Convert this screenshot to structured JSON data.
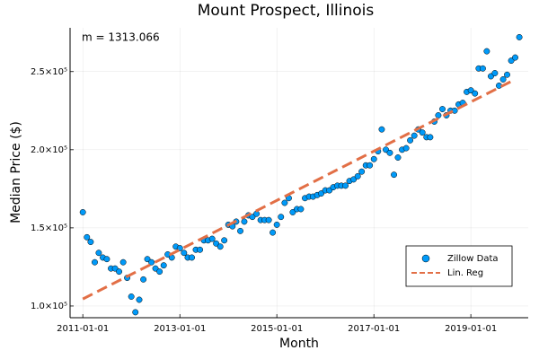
{
  "chart_data": {
    "type": "scatter",
    "title": "Mount Prospect, Illinois",
    "x_label": "Month",
    "y_label": "Median Price ($)",
    "annotation": "m = 1313.066",
    "xlim": [
      "2010-09-27",
      "2020-03-08"
    ],
    "xticks": [
      "2011-01-01",
      "2013-01-01",
      "2015-01-01",
      "2017-01-01",
      "2019-01-01"
    ],
    "ylim": [
      92500,
      278000
    ],
    "yticks": [
      {
        "value": 100000,
        "label": "1.0×10⁵"
      },
      {
        "value": 150000,
        "label": "1.5×10⁵"
      },
      {
        "value": 200000,
        "label": "2.0×10⁵"
      },
      {
        "value": 250000,
        "label": "2.5×10⁵"
      }
    ],
    "grid": true,
    "legend": "lower right",
    "series": [
      {
        "name": "Zillow Data",
        "color": "#009af9",
        "kind": "scatter",
        "x": [
          "2011-01-01",
          "2011-02-01",
          "2011-03-01",
          "2011-04-01",
          "2011-05-01",
          "2011-06-01",
          "2011-07-01",
          "2011-08-01",
          "2011-09-01",
          "2011-10-01",
          "2011-11-01",
          "2011-12-01",
          "2012-01-01",
          "2012-02-01",
          "2012-03-01",
          "2012-04-01",
          "2012-05-01",
          "2012-06-01",
          "2012-07-01",
          "2012-08-01",
          "2012-09-01",
          "2012-10-01",
          "2012-11-01",
          "2012-12-01",
          "2013-01-01",
          "2013-02-01",
          "2013-03-01",
          "2013-04-01",
          "2013-05-01",
          "2013-06-01",
          "2013-07-01",
          "2013-08-01",
          "2013-09-01",
          "2013-10-01",
          "2013-11-01",
          "2013-12-01",
          "2014-01-01",
          "2014-02-01",
          "2014-03-01",
          "2014-04-01",
          "2014-05-01",
          "2014-06-01",
          "2014-07-01",
          "2014-08-01",
          "2014-09-01",
          "2014-10-01",
          "2014-11-01",
          "2014-12-01",
          "2015-01-01",
          "2015-02-01",
          "2015-03-01",
          "2015-04-01",
          "2015-05-01",
          "2015-06-01",
          "2015-07-01",
          "2015-08-01",
          "2015-09-01",
          "2015-10-01",
          "2015-11-01",
          "2015-12-01",
          "2016-01-01",
          "2016-02-01",
          "2016-03-01",
          "2016-04-01",
          "2016-05-01",
          "2016-06-01",
          "2016-07-01",
          "2016-08-01",
          "2016-09-01",
          "2016-10-01",
          "2016-11-01",
          "2016-12-01",
          "2017-01-01",
          "2017-02-01",
          "2017-03-01",
          "2017-04-01",
          "2017-05-01",
          "2017-06-01",
          "2017-07-01",
          "2017-08-01",
          "2017-09-01",
          "2017-10-01",
          "2017-11-01",
          "2017-12-01",
          "2018-01-01",
          "2018-02-01",
          "2018-03-01",
          "2018-04-01",
          "2018-05-01",
          "2018-06-01",
          "2018-07-01",
          "2018-08-01",
          "2018-09-01",
          "2018-10-01",
          "2018-11-01",
          "2018-12-01",
          "2019-01-01",
          "2019-02-01",
          "2019-03-01",
          "2019-04-01",
          "2019-05-01",
          "2019-06-01",
          "2019-07-01",
          "2019-08-01",
          "2019-09-01",
          "2019-10-01",
          "2019-11-01",
          "2019-12-01",
          "2020-01-01"
        ],
        "values": [
          160000,
          144000,
          141000,
          128000,
          134000,
          131000,
          130000,
          124000,
          124000,
          122000,
          128000,
          118000,
          106000,
          96000,
          104000,
          117000,
          130000,
          128000,
          124000,
          122000,
          126000,
          133000,
          131000,
          138000,
          137000,
          134000,
          131000,
          131000,
          136000,
          136000,
          142000,
          142000,
          143000,
          140000,
          138000,
          142000,
          152000,
          151000,
          154000,
          148000,
          154000,
          158000,
          157000,
          159000,
          155000,
          155000,
          155000,
          147000,
          152000,
          157000,
          166000,
          169000,
          160000,
          162000,
          162000,
          169000,
          170000,
          170000,
          171000,
          172000,
          174000,
          174000,
          176000,
          177000,
          177000,
          177000,
          180000,
          181000,
          183000,
          186000,
          190000,
          190000,
          194000,
          199000,
          213000,
          200000,
          198000,
          184000,
          195000,
          200000,
          201000,
          206000,
          209000,
          213000,
          211000,
          208000,
          208000,
          218000,
          222000,
          226000,
          222000,
          225000,
          225000,
          229000,
          230000,
          237000,
          238000,
          236000,
          252000,
          252000,
          263000,
          247000,
          249000,
          241000,
          245000,
          248000,
          257000,
          259000,
          272000
        ]
      },
      {
        "name": "Lin. Reg",
        "color": "#e26f46",
        "kind": "line",
        "x": [
          "2011-01-01",
          "2019-12-01"
        ],
        "values": [
          104500,
          245000
        ]
      }
    ]
  }
}
